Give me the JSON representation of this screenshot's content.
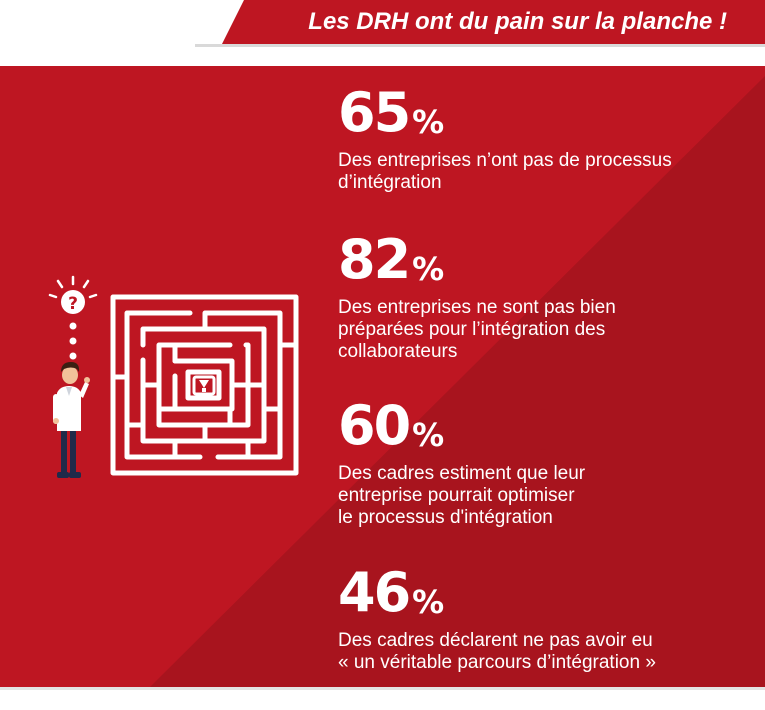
{
  "header": {
    "title": "Les DRH ont du pain sur la planche !"
  },
  "colors": {
    "primary_red": "#be1622",
    "dark_red": "#a8141e",
    "white": "#ffffff"
  },
  "illustration": {
    "person_icon": "person-thinking-icon",
    "question_icon": "question-mark-icon",
    "maze_icon": "maze-icon",
    "bulb_icon": "lightbulb-icon"
  },
  "stats": [
    {
      "value": "65",
      "unit": "%",
      "lines": [
        "Des entreprises n’ont pas de processus",
        "d’intégration"
      ]
    },
    {
      "value": "82",
      "unit": "%",
      "lines": [
        "Des entreprises ne sont pas bien",
        "préparées pour l’intégration des",
        "collaborateurs"
      ]
    },
    {
      "value": "60",
      "unit": "%",
      "lines": [
        "Des cadres estiment que leur",
        "entreprise pourrait optimiser",
        "le processus d'intégration"
      ]
    },
    {
      "value": "46",
      "unit": "%",
      "lines": [
        "Des cadres déclarent ne pas avoir eu",
        "« un véritable parcours d’intégration »"
      ]
    }
  ]
}
